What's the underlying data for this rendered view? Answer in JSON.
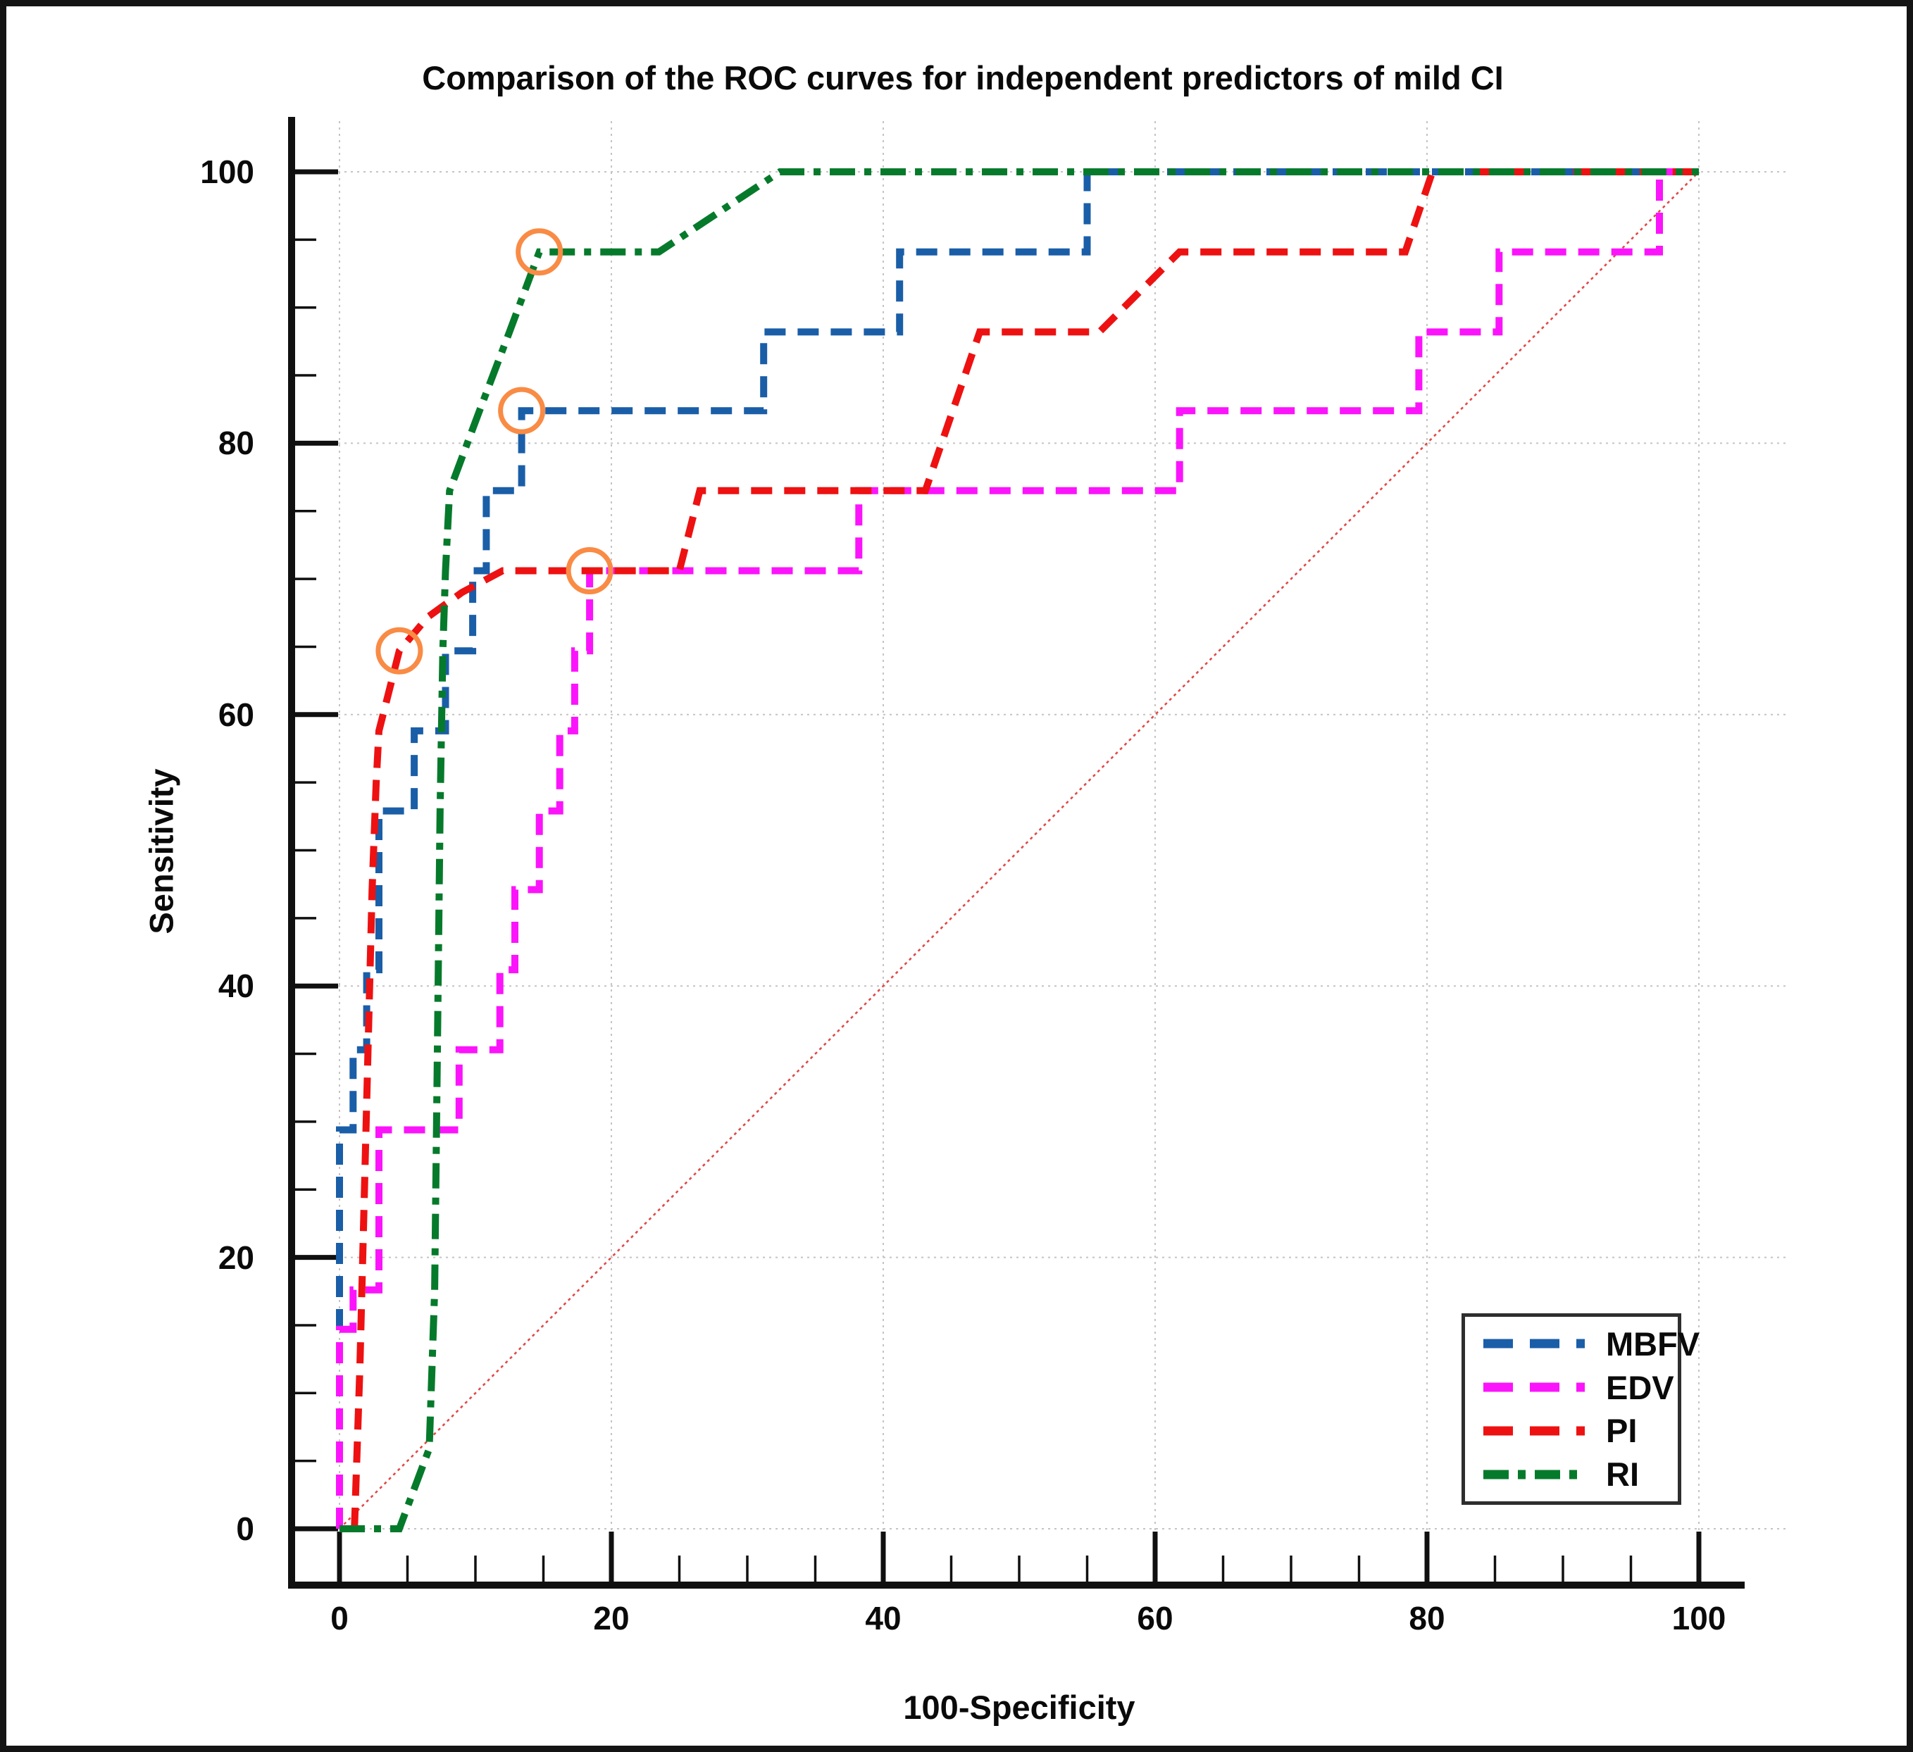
{
  "chart_data": {
    "type": "line",
    "subtype": "roc-curve-comparison",
    "title": "Comparison of the ROC curves for independent predictors of mild CI",
    "xlabel": "100-Specificity",
    "ylabel": "Sensitivity",
    "xlim": [
      0,
      100
    ],
    "ylim": [
      0,
      100
    ],
    "x_ticks": [
      0,
      20,
      40,
      60,
      80,
      100
    ],
    "y_ticks": [
      0,
      20,
      40,
      60,
      80,
      100
    ],
    "x_minor_step": 5,
    "y_minor_step": 5,
    "grid": "dotted",
    "legend_position": "lower-right",
    "series": [
      {
        "name": "MBFV",
        "color": "#1a5ea8",
        "style": "dashed",
        "points": [
          [
            0,
            0
          ],
          [
            0,
            29.4
          ],
          [
            1,
            29.4
          ],
          [
            1,
            35.3
          ],
          [
            2,
            35.3
          ],
          [
            2,
            41.2
          ],
          [
            2.9,
            41.2
          ],
          [
            2.9,
            52.9
          ],
          [
            5.5,
            52.9
          ],
          [
            5.5,
            58.8
          ],
          [
            7.8,
            58.8
          ],
          [
            7.8,
            64.7
          ],
          [
            9.8,
            64.7
          ],
          [
            9.8,
            70.6
          ],
          [
            10.8,
            70.6
          ],
          [
            10.8,
            76.5
          ],
          [
            13.4,
            76.5
          ],
          [
            13.4,
            82.4
          ],
          [
            31.2,
            82.4
          ],
          [
            31.2,
            88.2
          ],
          [
            41.2,
            88.2
          ],
          [
            41.2,
            94.1
          ],
          [
            55,
            94.1
          ],
          [
            55,
            100
          ],
          [
            100,
            100
          ]
        ]
      },
      {
        "name": "EDV",
        "color": "#fb14fb",
        "style": "dashed",
        "points": [
          [
            0,
            0
          ],
          [
            0,
            14.7
          ],
          [
            1,
            14.7
          ],
          [
            1,
            17.6
          ],
          [
            2.9,
            17.6
          ],
          [
            2.9,
            29.4
          ],
          [
            8.8,
            29.4
          ],
          [
            8.8,
            35.3
          ],
          [
            11.8,
            35.3
          ],
          [
            11.8,
            41.2
          ],
          [
            12.9,
            41.2
          ],
          [
            12.9,
            47.1
          ],
          [
            14.7,
            47.1
          ],
          [
            14.7,
            52.9
          ],
          [
            16.2,
            52.9
          ],
          [
            16.2,
            58.8
          ],
          [
            17.3,
            58.8
          ],
          [
            17.3,
            64.7
          ],
          [
            18.4,
            64.7
          ],
          [
            18.4,
            70.6
          ],
          [
            38.2,
            70.6
          ],
          [
            38.2,
            76.5
          ],
          [
            61.8,
            76.5
          ],
          [
            61.8,
            82.4
          ],
          [
            79.4,
            82.4
          ],
          [
            79.4,
            88.2
          ],
          [
            85.3,
            88.2
          ],
          [
            85.3,
            94.1
          ],
          [
            97.1,
            94.1
          ],
          [
            97.1,
            100
          ],
          [
            100,
            100
          ]
        ]
      },
      {
        "name": "PI",
        "color": "#ee1111",
        "style": "dashed",
        "points": [
          [
            1.1,
            0
          ],
          [
            1.5,
            11.8
          ],
          [
            1.8,
            23.5
          ],
          [
            2.1,
            35.3
          ],
          [
            2.4,
            47.1
          ],
          [
            2.7,
            55
          ],
          [
            2.9,
            58.8
          ],
          [
            4.4,
            64.7
          ],
          [
            6.5,
            67.2
          ],
          [
            9,
            69
          ],
          [
            12,
            70.6
          ],
          [
            25,
            70.6
          ],
          [
            26.5,
            76.5
          ],
          [
            43.1,
            76.5
          ],
          [
            47.1,
            88.2
          ],
          [
            55.9,
            88.2
          ],
          [
            61.8,
            94.1
          ],
          [
            78.4,
            94.1
          ],
          [
            80.4,
            100
          ],
          [
            100,
            100
          ]
        ]
      },
      {
        "name": "RI",
        "color": "#067a2b",
        "style": "dashdot",
        "points": [
          [
            0,
            0
          ],
          [
            4.4,
            0
          ],
          [
            6.6,
            5.9
          ],
          [
            7,
            17.6
          ],
          [
            7.2,
            35.3
          ],
          [
            7.4,
            52.9
          ],
          [
            7.6,
            64.7
          ],
          [
            7.8,
            70.6
          ],
          [
            8.1,
            76.5
          ],
          [
            10.3,
            82.4
          ],
          [
            12.5,
            88.2
          ],
          [
            14.7,
            94.1
          ],
          [
            23.5,
            94.1
          ],
          [
            32.4,
            100
          ],
          [
            100,
            100
          ]
        ]
      }
    ],
    "reference_line": {
      "from": [
        0,
        0
      ],
      "to": [
        100,
        100
      ],
      "color": "#e14848"
    },
    "criterion_markers": {
      "color": "#f98b45",
      "points": [
        {
          "series": "PI",
          "x": 4.4,
          "y": 64.7
        },
        {
          "series": "MBFV",
          "x": 13.4,
          "y": 82.4
        },
        {
          "series": "RI",
          "x": 14.7,
          "y": 94.1
        },
        {
          "series": "EDV",
          "x": 18.4,
          "y": 70.6
        }
      ]
    }
  }
}
